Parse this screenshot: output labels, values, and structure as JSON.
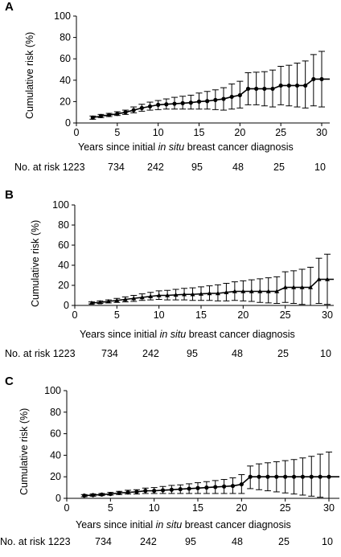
{
  "shared": {
    "xlabel_pre": "Years since initial ",
    "xlabel_em": "in situ",
    "xlabel_post": " breast cancer diagnosis",
    "ylabel": "Cumulative  risk (%)",
    "risk_label": "No. at risk 1223",
    "risk_values": [
      "734",
      "242",
      "95",
      "48",
      "25",
      "10"
    ]
  },
  "chart_data": [
    {
      "type": "line",
      "panel": "A",
      "xlabel": "Years since initial in situ breast cancer diagnosis",
      "ylabel": "Cumulative  risk (%)",
      "xlim": [
        0,
        31
      ],
      "ylim": [
        0,
        100
      ],
      "xticks": [
        0,
        5,
        10,
        15,
        20,
        25,
        30
      ],
      "yticks": [
        0,
        20,
        40,
        60,
        80,
        100
      ],
      "grid": false,
      "x": [
        2,
        3,
        4,
        5,
        6,
        7,
        8,
        9,
        10,
        11,
        12,
        13,
        14,
        15,
        16,
        17,
        18,
        19,
        20,
        21,
        22,
        23,
        24,
        25,
        26,
        27,
        28,
        29,
        30
      ],
      "y": [
        5,
        6.5,
        7.5,
        8.5,
        10,
        12,
        14,
        15.5,
        17,
        17.5,
        18,
        18.5,
        19,
        20,
        20.5,
        21.5,
        22.5,
        24.5,
        26,
        32,
        32,
        32,
        32,
        35,
        35,
        35,
        35,
        41,
        41
      ],
      "lower": [
        3.5,
        5,
        6,
        7,
        8,
        9.5,
        11,
        12,
        12.5,
        13,
        13,
        13,
        13,
        13,
        13,
        12.5,
        12,
        13,
        14,
        17,
        17,
        16,
        15,
        17,
        16,
        15,
        14,
        16,
        15
      ],
      "upper": [
        6.5,
        8,
        9,
        10.5,
        12,
        15,
        17.5,
        19.5,
        21,
        22.5,
        24,
        25,
        26,
        28,
        29.5,
        31,
        33,
        36.5,
        39,
        47,
        47.5,
        48,
        49.5,
        53,
        54,
        56,
        58,
        64,
        67
      ],
      "risk_table": {
        "label": "No. at risk",
        "values": [
          1223,
          734,
          242,
          95,
          48,
          25,
          10
        ]
      }
    },
    {
      "type": "line",
      "panel": "B",
      "xlabel": "Years since initial in situ breast cancer diagnosis",
      "ylabel": "Cumulative  risk (%)",
      "xlim": [
        0,
        31
      ],
      "ylim": [
        0,
        100
      ],
      "xticks": [
        0,
        5,
        10,
        15,
        20,
        25,
        30
      ],
      "yticks": [
        0,
        20,
        40,
        60,
        80,
        100
      ],
      "grid": false,
      "x": [
        2,
        3,
        4,
        5,
        6,
        7,
        8,
        9,
        10,
        11,
        12,
        13,
        14,
        15,
        16,
        17,
        18,
        19,
        20,
        21,
        22,
        23,
        24,
        25,
        26,
        27,
        28,
        29,
        30
      ],
      "y": [
        2.5,
        3,
        4,
        5,
        6,
        7,
        8,
        9,
        10,
        10,
        10.5,
        11,
        11,
        11.5,
        12,
        12,
        13,
        14,
        14,
        14,
        14,
        14,
        14,
        18,
        18,
        18,
        18,
        26,
        26
      ],
      "lower": [
        1.5,
        2,
        2.5,
        3,
        3.5,
        4,
        5,
        5.5,
        6,
        5.5,
        5.5,
        5.5,
        5,
        5,
        5,
        4.5,
        4.5,
        5,
        4.5,
        4,
        3,
        2.5,
        2,
        3,
        2,
        1,
        0,
        2,
        1
      ],
      "upper": [
        3.5,
        4.5,
        5.5,
        7,
        8.5,
        10,
        11.5,
        13,
        14.5,
        15,
        16,
        17,
        17.5,
        18.5,
        19.5,
        20.5,
        22,
        23.5,
        24.5,
        25.5,
        26.5,
        27.5,
        28.5,
        33.5,
        34.5,
        36,
        38,
        47,
        51
      ],
      "risk_table": {
        "label": "No. at risk",
        "values": [
          1223,
          734,
          242,
          95,
          48,
          25,
          10
        ]
      }
    },
    {
      "type": "line",
      "panel": "C",
      "xlabel": "Years since initial in situ breast cancer diagnosis",
      "ylabel": "Cumulative risk (%)",
      "xlim": [
        0,
        31
      ],
      "ylim": [
        0,
        100
      ],
      "xticks": [
        0,
        5,
        10,
        15,
        20,
        25,
        30
      ],
      "yticks": [
        0,
        20,
        40,
        60,
        80,
        100
      ],
      "grid": false,
      "x": [
        2,
        3,
        4,
        5,
        6,
        7,
        8,
        9,
        10,
        11,
        12,
        13,
        14,
        15,
        16,
        17,
        18,
        19,
        20,
        21,
        22,
        23,
        24,
        25,
        26,
        27,
        28,
        29,
        30
      ],
      "y": [
        2.5,
        3,
        3.5,
        4,
        5,
        5.5,
        6,
        7,
        7,
        7.5,
        8,
        8.5,
        9,
        9.5,
        10,
        10.5,
        11,
        11.5,
        13,
        20,
        20,
        20,
        20,
        20,
        20,
        20,
        20,
        20,
        20
      ],
      "lower": [
        1.5,
        2,
        2.5,
        3,
        3.5,
        4,
        4,
        4.5,
        4.5,
        4.5,
        4.5,
        4.5,
        4.5,
        4.5,
        4.5,
        4.5,
        4.5,
        4.5,
        4.5,
        9,
        8,
        7,
        6,
        5,
        4,
        3,
        2,
        1,
        0
      ],
      "upper": [
        3.5,
        4,
        4.5,
        5.5,
        6.5,
        7.5,
        8,
        9.5,
        10,
        11,
        12,
        12.5,
        13.5,
        14.5,
        15.5,
        16.5,
        17.5,
        19,
        22,
        30,
        32,
        33,
        34,
        35,
        36,
        37.5,
        39,
        41,
        43
      ],
      "risk_table": {
        "label": "No. at risk",
        "values": [
          1223,
          734,
          242,
          95,
          48,
          25,
          10
        ]
      }
    }
  ]
}
